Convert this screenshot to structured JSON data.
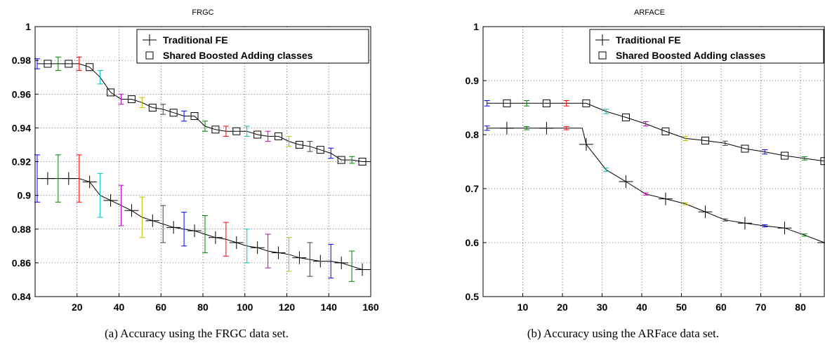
{
  "chart_data": [
    {
      "type": "line",
      "title": "FRGC",
      "caption": "(a) Accuracy using the FRGC data set.",
      "xlim": [
        0,
        160
      ],
      "ylim": [
        0.84,
        1.0
      ],
      "xticks": [
        20,
        40,
        60,
        80,
        100,
        120,
        140,
        160
      ],
      "yticks": [
        0.84,
        0.86,
        0.88,
        0.9,
        0.92,
        0.94,
        0.96,
        0.98,
        1
      ],
      "ytick_labels": [
        "0.84",
        "0.86",
        "0.88",
        "0.9",
        "0.92",
        "0.94",
        "0.96",
        "0.98",
        "1"
      ],
      "grid": true,
      "legend_position": "top-right",
      "series": [
        {
          "name": "Traditional FE",
          "marker": "plus",
          "x": [
            1,
            6,
            11,
            16,
            21,
            26,
            31,
            36,
            41,
            46,
            51,
            56,
            61,
            66,
            71,
            76,
            81,
            86,
            91,
            96,
            101,
            106,
            111,
            116,
            121,
            126,
            131,
            136,
            141,
            146,
            151,
            156,
            160
          ],
          "values": [
            0.91,
            0.91,
            0.91,
            0.91,
            0.91,
            0.908,
            0.9,
            0.897,
            0.894,
            0.891,
            0.887,
            0.885,
            0.883,
            0.881,
            0.88,
            0.879,
            0.877,
            0.875,
            0.874,
            0.872,
            0.87,
            0.869,
            0.867,
            0.866,
            0.865,
            0.863,
            0.862,
            0.861,
            0.861,
            0.86,
            0.858,
            0.856,
            0.856
          ],
          "markers_x": [
            6,
            16,
            26,
            36,
            46,
            56,
            66,
            76,
            86,
            96,
            106,
            116,
            126,
            136,
            146,
            156
          ],
          "error_bars": [
            {
              "x": 1,
              "y": 0.91,
              "err": 0.014
            },
            {
              "x": 11,
              "y": 0.91,
              "err": 0.014
            },
            {
              "x": 21,
              "y": 0.91,
              "err": 0.014
            },
            {
              "x": 31,
              "y": 0.9,
              "err": 0.013
            },
            {
              "x": 41,
              "y": 0.894,
              "err": 0.012
            },
            {
              "x": 51,
              "y": 0.887,
              "err": 0.012
            },
            {
              "x": 61,
              "y": 0.883,
              "err": 0.011
            },
            {
              "x": 71,
              "y": 0.88,
              "err": 0.01
            },
            {
              "x": 81,
              "y": 0.877,
              "err": 0.011
            },
            {
              "x": 91,
              "y": 0.874,
              "err": 0.01
            },
            {
              "x": 101,
              "y": 0.87,
              "err": 0.01
            },
            {
              "x": 111,
              "y": 0.867,
              "err": 0.01
            },
            {
              "x": 121,
              "y": 0.865,
              "err": 0.01
            },
            {
              "x": 131,
              "y": 0.862,
              "err": 0.01
            },
            {
              "x": 141,
              "y": 0.861,
              "err": 0.01
            },
            {
              "x": 151,
              "y": 0.858,
              "err": 0.009
            }
          ]
        },
        {
          "name": "Shared Boosted Adding classes",
          "marker": "square",
          "x": [
            1,
            6,
            11,
            16,
            21,
            26,
            31,
            36,
            41,
            46,
            51,
            56,
            61,
            66,
            71,
            76,
            81,
            86,
            91,
            96,
            101,
            106,
            111,
            116,
            121,
            126,
            131,
            136,
            141,
            146,
            151,
            156,
            160
          ],
          "values": [
            0.978,
            0.978,
            0.978,
            0.978,
            0.978,
            0.976,
            0.97,
            0.961,
            0.957,
            0.957,
            0.955,
            0.952,
            0.951,
            0.949,
            0.947,
            0.947,
            0.941,
            0.939,
            0.938,
            0.938,
            0.938,
            0.936,
            0.935,
            0.935,
            0.932,
            0.93,
            0.929,
            0.927,
            0.925,
            0.921,
            0.921,
            0.92,
            0.92
          ],
          "markers_x": [
            6,
            16,
            26,
            36,
            46,
            56,
            66,
            76,
            86,
            96,
            106,
            116,
            126,
            136,
            146,
            156
          ],
          "error_bars": [
            {
              "x": 1,
              "y": 0.978,
              "err": 0.003
            },
            {
              "x": 11,
              "y": 0.978,
              "err": 0.004
            },
            {
              "x": 21,
              "y": 0.978,
              "err": 0.004
            },
            {
              "x": 31,
              "y": 0.97,
              "err": 0.004
            },
            {
              "x": 41,
              "y": 0.957,
              "err": 0.003
            },
            {
              "x": 51,
              "y": 0.955,
              "err": 0.003
            },
            {
              "x": 61,
              "y": 0.951,
              "err": 0.003
            },
            {
              "x": 71,
              "y": 0.947,
              "err": 0.003
            },
            {
              "x": 81,
              "y": 0.941,
              "err": 0.003
            },
            {
              "x": 91,
              "y": 0.938,
              "err": 0.003
            },
            {
              "x": 101,
              "y": 0.938,
              "err": 0.003
            },
            {
              "x": 111,
              "y": 0.935,
              "err": 0.003
            },
            {
              "x": 121,
              "y": 0.932,
              "err": 0.003
            },
            {
              "x": 131,
              "y": 0.929,
              "err": 0.003
            },
            {
              "x": 141,
              "y": 0.925,
              "err": 0.003
            },
            {
              "x": 151,
              "y": 0.921,
              "err": 0.002
            }
          ]
        }
      ]
    },
    {
      "type": "line",
      "title": "ARFACE",
      "caption": "(b) Accuracy using the ARFace data set.",
      "xlim": [
        0,
        86
      ],
      "ylim": [
        0.5,
        1.0
      ],
      "xticks": [
        10,
        20,
        30,
        40,
        50,
        60,
        70,
        80
      ],
      "yticks": [
        0.5,
        0.6,
        0.7,
        0.8,
        0.9,
        1
      ],
      "ytick_labels": [
        "0.5",
        "0.6",
        "0.7",
        "0.8",
        "0.9",
        "1"
      ],
      "grid": true,
      "legend_position": "top-right",
      "series": [
        {
          "name": "Traditional FE",
          "marker": "plus",
          "x": [
            1,
            6,
            11,
            16,
            21,
            25,
            26,
            31,
            36,
            41,
            46,
            51,
            56,
            61,
            66,
            71,
            76,
            81,
            86
          ],
          "values": [
            0.812,
            0.812,
            0.812,
            0.812,
            0.812,
            0.812,
            0.782,
            0.735,
            0.713,
            0.69,
            0.681,
            0.672,
            0.657,
            0.642,
            0.636,
            0.631,
            0.627,
            0.614,
            0.6
          ],
          "markers_x": [
            6,
            16,
            26,
            36,
            46,
            56,
            66,
            76,
            86
          ],
          "error_bars": [
            {
              "x": 1,
              "y": 0.812,
              "err": 0.004
            },
            {
              "x": 11,
              "y": 0.812,
              "err": 0.003
            },
            {
              "x": 21,
              "y": 0.812,
              "err": 0.003
            },
            {
              "x": 31,
              "y": 0.735,
              "err": 0.003
            },
            {
              "x": 41,
              "y": 0.69,
              "err": 0.002
            },
            {
              "x": 51,
              "y": 0.672,
              "err": 0.002
            },
            {
              "x": 61,
              "y": 0.642,
              "err": 0.002
            },
            {
              "x": 71,
              "y": 0.631,
              "err": 0.002
            },
            {
              "x": 81,
              "y": 0.614,
              "err": 0.002
            }
          ]
        },
        {
          "name": "Shared Boosted Adding classes",
          "marker": "square",
          "x": [
            1,
            6,
            11,
            16,
            21,
            26,
            31,
            36,
            41,
            46,
            51,
            56,
            61,
            66,
            71,
            76,
            81,
            86
          ],
          "values": [
            0.858,
            0.858,
            0.858,
            0.858,
            0.858,
            0.858,
            0.843,
            0.832,
            0.82,
            0.806,
            0.793,
            0.789,
            0.784,
            0.774,
            0.768,
            0.761,
            0.756,
            0.751
          ],
          "markers_x": [
            6,
            16,
            26,
            36,
            46,
            56,
            66,
            76,
            86
          ],
          "error_bars": [
            {
              "x": 1,
              "y": 0.858,
              "err": 0.005
            },
            {
              "x": 11,
              "y": 0.858,
              "err": 0.005
            },
            {
              "x": 21,
              "y": 0.858,
              "err": 0.005
            },
            {
              "x": 31,
              "y": 0.843,
              "err": 0.004
            },
            {
              "x": 41,
              "y": 0.82,
              "err": 0.004
            },
            {
              "x": 51,
              "y": 0.793,
              "err": 0.004
            },
            {
              "x": 61,
              "y": 0.784,
              "err": 0.004
            },
            {
              "x": 71,
              "y": 0.768,
              "err": 0.004
            },
            {
              "x": 81,
              "y": 0.756,
              "err": 0.003
            }
          ]
        }
      ]
    }
  ],
  "errorbar_colors": [
    "#0000ff",
    "#008000",
    "#ff0000",
    "#00bfbf",
    "#bf00bf",
    "#bfbf00",
    "#404040"
  ]
}
